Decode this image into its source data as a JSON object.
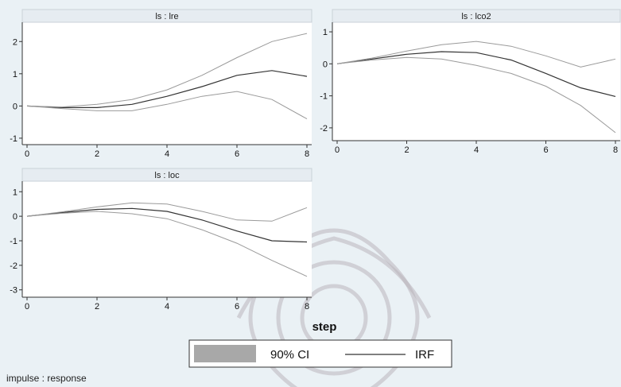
{
  "chart_data": [
    {
      "type": "line",
      "title": "ls : lre",
      "x": [
        0,
        1,
        2,
        3,
        4,
        5,
        6,
        7,
        8
      ],
      "xticks": [
        0,
        2,
        4,
        6,
        8
      ],
      "yticks": [
        -1,
        0,
        1,
        2
      ],
      "ylim": [
        -1.2,
        2.5
      ],
      "series": [
        {
          "name": "IRF",
          "values": [
            0,
            -0.05,
            -0.05,
            0.05,
            0.3,
            0.6,
            0.95,
            1.1,
            0.92
          ]
        },
        {
          "name": "90% CI",
          "values": [
            0,
            -0.08,
            -0.15,
            -0.15,
            0.05,
            0.3,
            0.45,
            0.2,
            -0.4
          ]
        },
        {
          "name": "90% CI",
          "values": [
            0,
            -0.03,
            0.05,
            0.2,
            0.5,
            0.95,
            1.5,
            2.0,
            2.25
          ]
        }
      ]
    },
    {
      "type": "line",
      "title": "ls : lco2",
      "x": [
        0,
        1,
        2,
        3,
        4,
        5,
        6,
        7,
        8
      ],
      "xticks": [
        0,
        2,
        4,
        6,
        8
      ],
      "yticks": [
        -2,
        -1,
        0,
        1
      ],
      "ylim": [
        -2.4,
        1.2
      ],
      "series": [
        {
          "name": "IRF",
          "values": [
            0,
            0.15,
            0.3,
            0.38,
            0.35,
            0.12,
            -0.3,
            -0.75,
            -1.02
          ]
        },
        {
          "name": "90% CI",
          "values": [
            0,
            0.12,
            0.2,
            0.15,
            -0.05,
            -0.3,
            -0.7,
            -1.3,
            -2.15
          ]
        },
        {
          "name": "90% CI",
          "values": [
            0,
            0.18,
            0.4,
            0.6,
            0.7,
            0.55,
            0.25,
            -0.1,
            0.15
          ]
        }
      ]
    },
    {
      "type": "line",
      "title": "ls : loc",
      "x": [
        0,
        1,
        2,
        3,
        4,
        5,
        6,
        7,
        8
      ],
      "xticks": [
        0,
        2,
        4,
        6,
        8
      ],
      "yticks": [
        -3,
        -2,
        -1,
        0,
        1
      ],
      "ylim": [
        -3.3,
        1.3
      ],
      "series": [
        {
          "name": "IRF",
          "values": [
            0,
            0.15,
            0.28,
            0.32,
            0.2,
            -0.15,
            -0.6,
            -1.0,
            -1.05
          ]
        },
        {
          "name": "90% CI",
          "values": [
            0,
            0.12,
            0.2,
            0.1,
            -0.1,
            -0.55,
            -1.1,
            -1.8,
            -2.45
          ]
        },
        {
          "name": "90% CI",
          "values": [
            0,
            0.18,
            0.38,
            0.55,
            0.5,
            0.2,
            -0.15,
            -0.2,
            0.35
          ]
        }
      ]
    }
  ],
  "xlabel": "step",
  "legend": {
    "ci_label": "90% CI",
    "irf_label": "IRF"
  },
  "footer": "impulse : response",
  "colors": {
    "ci": "#9a9a9a",
    "irf": "#333333",
    "ci_fill": "#a8a8a8",
    "background": "#eaf1f5"
  }
}
